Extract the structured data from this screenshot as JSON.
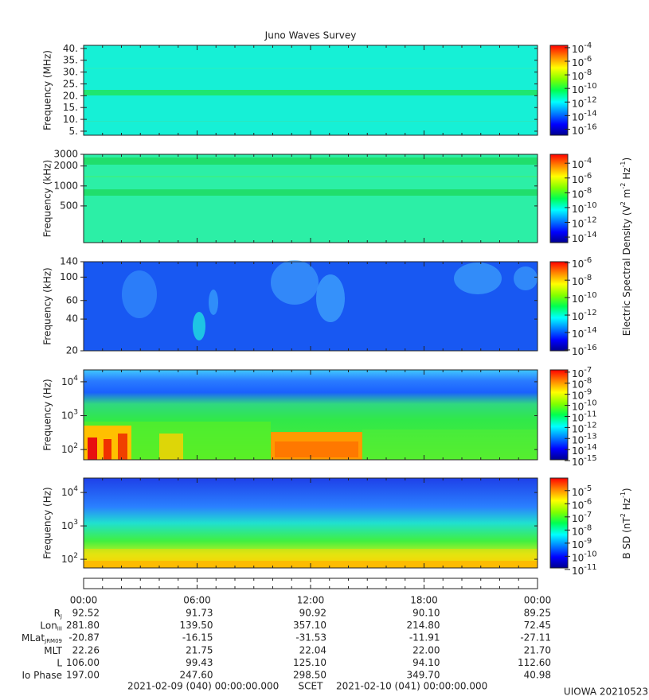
{
  "title": "Juno Waves Survey",
  "chart_data": [
    {
      "type": "spectrogram",
      "ylabel": "Frequency (MHz)",
      "log": false,
      "ylim": [
        3.3,
        41.3
      ],
      "yticks": [
        {
          "value": 5,
          "label": "5."
        },
        {
          "value": 10,
          "label": "10."
        },
        {
          "value": 15,
          "label": "15."
        },
        {
          "value": 20,
          "label": "20."
        },
        {
          "value": 25,
          "label": "25."
        },
        {
          "value": 30,
          "label": "30."
        },
        {
          "value": 35,
          "label": "35."
        },
        {
          "value": 40,
          "label": "40."
        }
      ],
      "colorbar": {
        "clim": [
          1.3e-17,
          0.00022
        ],
        "ticks": [
          {
            "value": 0.0001,
            "label": "10",
            "exp": "-4"
          },
          {
            "value": 1e-06,
            "label": "10",
            "exp": "-6"
          },
          {
            "value": 1e-08,
            "label": "10",
            "exp": "-8"
          },
          {
            "value": 1e-10,
            "label": "10",
            "exp": "-10"
          },
          {
            "value": 1e-12,
            "label": "10",
            "exp": "-12"
          },
          {
            "value": 1e-14,
            "label": "10",
            "exp": "-14"
          },
          {
            "value": 1e-16,
            "label": "10",
            "exp": "-16"
          }
        ]
      }
    },
    {
      "type": "spectrogram",
      "ylabel": "Frequency (kHz)",
      "log": true,
      "ylim": [
        140,
        3000
      ],
      "yticks": [
        500,
        1000,
        2000,
        3000
      ],
      "colorbar": {
        "clim": [
          1.8e-15,
          0.0016
        ],
        "ticks": [
          {
            "value": 0.0001,
            "label": "10",
            "exp": "-4"
          },
          {
            "value": 1e-06,
            "label": "10",
            "exp": "-6"
          },
          {
            "value": 1e-08,
            "label": "10",
            "exp": "-8"
          },
          {
            "value": 1e-10,
            "label": "10",
            "exp": "-10"
          },
          {
            "value": 1e-12,
            "label": "10",
            "exp": "-12"
          },
          {
            "value": 1e-14,
            "label": "10",
            "exp": "-14"
          }
        ]
      }
    },
    {
      "type": "spectrogram",
      "ylabel": "Frequency (kHz)",
      "log": true,
      "ylim": [
        20,
        140
      ],
      "yticks": [
        20,
        40,
        60,
        100,
        140
      ],
      "colorbar": {
        "clim": [
          8e-17,
          1.3e-06
        ],
        "ticks": [
          {
            "value": 1e-06,
            "label": "10",
            "exp": "-6"
          },
          {
            "value": 1e-08,
            "label": "10",
            "exp": "-8"
          },
          {
            "value": 1e-10,
            "label": "10",
            "exp": "-10"
          },
          {
            "value": 1e-12,
            "label": "10",
            "exp": "-12"
          },
          {
            "value": 1e-14,
            "label": "10",
            "exp": "-14"
          },
          {
            "value": 1e-16,
            "label": "10",
            "exp": "-16"
          }
        ]
      }
    },
    {
      "type": "spectrogram",
      "ylabel": "Frequency (Hz)",
      "log": true,
      "ylim": [
        50,
        22400
      ],
      "yticks": [
        {
          "value": 100,
          "label": "10",
          "exp": "2"
        },
        {
          "value": 1000,
          "label": "10",
          "exp": "3"
        },
        {
          "value": 10000,
          "label": "10",
          "exp": "4"
        }
      ],
      "colorbar": {
        "clim": [
          1.2e-15,
          1.6e-07
        ],
        "ticks": [
          {
            "value": 1e-07,
            "label": "10",
            "exp": "-7"
          },
          {
            "value": 1e-08,
            "label": "10",
            "exp": "-8"
          },
          {
            "value": 1e-09,
            "label": "10",
            "exp": "-9"
          },
          {
            "value": 1e-10,
            "label": "10",
            "exp": "-10"
          },
          {
            "value": 1e-11,
            "label": "10",
            "exp": "-11"
          },
          {
            "value": 1e-12,
            "label": "10",
            "exp": "-12"
          },
          {
            "value": 1e-13,
            "label": "10",
            "exp": "-13"
          },
          {
            "value": 1e-14,
            "label": "10",
            "exp": "-14"
          },
          {
            "value": 1e-15,
            "label": "10",
            "exp": "-15"
          }
        ]
      }
    },
    {
      "type": "spectrogram",
      "ylabel": "Frequency (Hz)",
      "log": true,
      "ylim": [
        55,
        27000
      ],
      "yticks": [
        {
          "value": 100,
          "label": "10",
          "exp": "2"
        },
        {
          "value": 1000,
          "label": "10",
          "exp": "3"
        },
        {
          "value": 10000,
          "label": "10",
          "exp": "4"
        }
      ],
      "colorbar": {
        "clim": [
          1.3e-11,
          9e-05
        ],
        "ticks": [
          {
            "value": 1e-05,
            "label": "10",
            "exp": "-5"
          },
          {
            "value": 1e-06,
            "label": "10",
            "exp": "-6"
          },
          {
            "value": 1e-07,
            "label": "10",
            "exp": "-7"
          },
          {
            "value": 1e-08,
            "label": "10",
            "exp": "-8"
          },
          {
            "value": 1e-09,
            "label": "10",
            "exp": "-9"
          },
          {
            "value": 1e-10,
            "label": "10",
            "exp": "-10"
          },
          {
            "value": 1e-11,
            "label": "10",
            "exp": "-11"
          }
        ]
      }
    }
  ],
  "side_labels": [
    [
      {
        "t": "Electric Spectral Density (V"
      },
      {
        "sup": "2"
      },
      {
        "t": " m"
      },
      {
        "sup": "-2"
      },
      {
        "t": " Hz"
      },
      {
        "sup": "-1"
      },
      {
        "t": ")"
      }
    ],
    [
      {
        "t": "B SD (nT"
      },
      {
        "sup": "2"
      },
      {
        "t": " Hz"
      },
      {
        "sup": "-1"
      },
      {
        "t": ")"
      }
    ]
  ],
  "ephemeris": {
    "times": [
      "00:00",
      "06:00",
      "12:00",
      "18:00",
      "00:00"
    ],
    "rows": [
      {
        "label": "R",
        "sub": "J",
        "values": [
          "92.52",
          "91.73",
          "90.92",
          "90.10",
          "89.25"
        ]
      },
      {
        "label": "Lon",
        "sub": "III",
        "values": [
          "281.80",
          "139.50",
          "357.10",
          "214.80",
          "72.45"
        ]
      },
      {
        "label": "MLat",
        "sub": "JRM09",
        "values": [
          "-20.87",
          "-16.15",
          "-31.53",
          "-11.91",
          "-27.11"
        ]
      },
      {
        "label": "MLT",
        "values": [
          "22.26",
          "21.75",
          "22.04",
          "22.00",
          "21.70"
        ]
      },
      {
        "label": "L",
        "values": [
          "106.00",
          "99.43",
          "125.10",
          "94.10",
          "112.60"
        ]
      },
      {
        "label": "Io Phase",
        "values": [
          "197.00",
          "247.60",
          "298.50",
          "349.70",
          "40.98"
        ]
      }
    ]
  },
  "footer": {
    "start": "2021-02-09 (040) 00:00:00.000",
    "scet": "SCET",
    "end": "2021-02-10 (041) 00:00:00.000",
    "stamp": "UIOWA 20210523"
  }
}
